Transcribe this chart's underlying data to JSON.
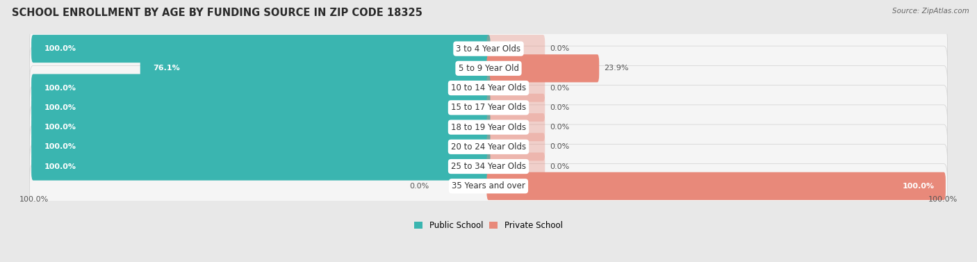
{
  "title": "SCHOOL ENROLLMENT BY AGE BY FUNDING SOURCE IN ZIP CODE 18325",
  "source": "Source: ZipAtlas.com",
  "categories": [
    "3 to 4 Year Olds",
    "5 to 9 Year Old",
    "10 to 14 Year Olds",
    "15 to 17 Year Olds",
    "18 to 19 Year Olds",
    "20 to 24 Year Olds",
    "25 to 34 Year Olds",
    "35 Years and over"
  ],
  "public_values": [
    100.0,
    76.1,
    100.0,
    100.0,
    100.0,
    100.0,
    100.0,
    0.0
  ],
  "private_values": [
    0.0,
    23.9,
    0.0,
    0.0,
    0.0,
    0.0,
    0.0,
    100.0
  ],
  "public_color": "#3ab5b0",
  "private_color": "#e8897a",
  "public_color_last": "#8ecdd1",
  "background_color": "#e8e8e8",
  "bar_background": "#f5f5f5",
  "bar_bg_stroke": "#d0d0d0",
  "title_fontsize": 10.5,
  "label_fontsize": 8.5,
  "value_fontsize": 8.0,
  "cat_label_fontsize": 8.5,
  "axis_label_left": "100.0%",
  "axis_label_right": "100.0%",
  "xlim": 100,
  "zero_private_bar_width": 12
}
